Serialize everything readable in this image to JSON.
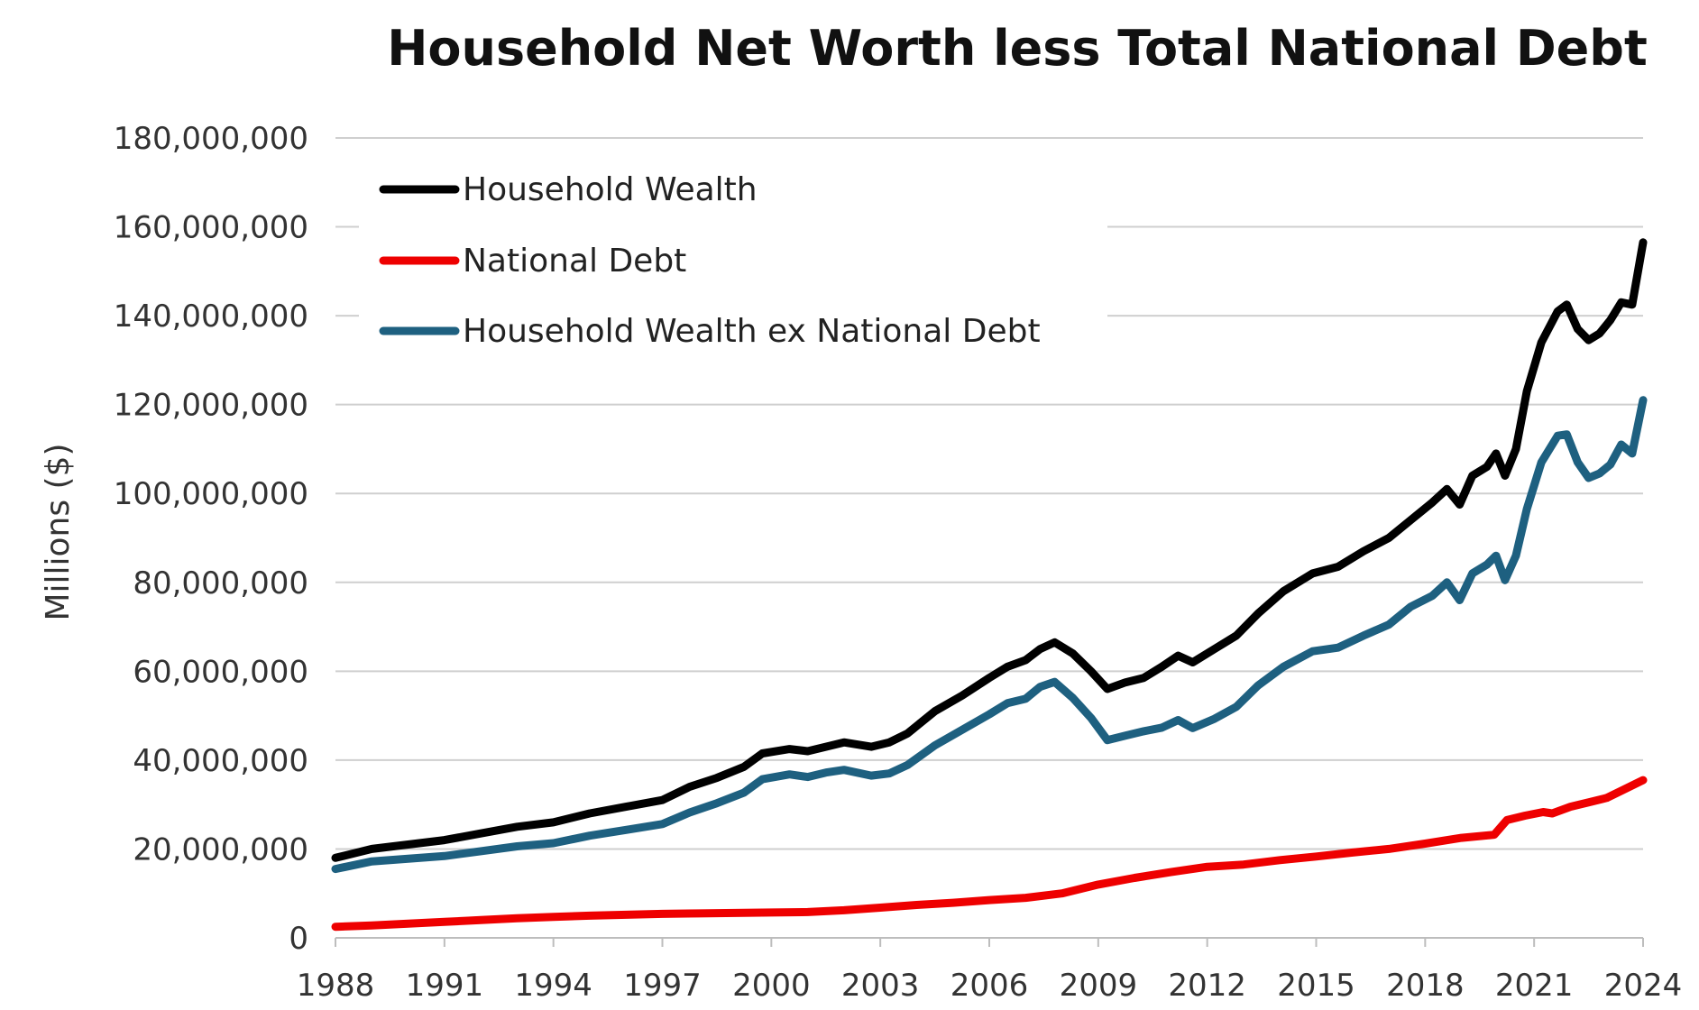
{
  "chart_data": {
    "type": "line",
    "title": "Household Net Worth less Total National Debt",
    "xlabel": "",
    "ylabel": "Millions ($)",
    "xlim": [
      1988,
      2024
    ],
    "ylim": [
      0,
      180000000
    ],
    "grid": true,
    "legend_position": "top-left",
    "x_ticks": [
      1988,
      1991,
      1994,
      1997,
      2000,
      2003,
      2006,
      2009,
      2012,
      2015,
      2018,
      2021,
      2024
    ],
    "x_tick_labels": [
      "1988",
      "1991",
      "1994",
      "1997",
      "2000",
      "2003",
      "2006",
      "2009",
      "2012",
      "2015",
      "2018",
      "2021",
      "2024"
    ],
    "y_ticks": [
      0,
      20000000,
      40000000,
      60000000,
      80000000,
      100000000,
      120000000,
      140000000,
      160000000,
      180000000
    ],
    "y_tick_labels": [
      "0",
      "20,000,000",
      "40,000,000",
      "60,000,000",
      "80,000,000",
      "100,000,000",
      "120,000,000",
      "140,000,000",
      "160,000,000",
      "180,000,000"
    ],
    "series": [
      {
        "name": "Household Wealth",
        "color": "#000000",
        "x": [
          1988,
          1989,
          1990,
          1991,
          1992,
          1993,
          1994,
          1995,
          1996,
          1997,
          1997.75,
          1998.5,
          1999.25,
          1999.75,
          2000.5,
          2001,
          2001.5,
          2002,
          2002.75,
          2003.25,
          2003.75,
          2004.5,
          2005.25,
          2006,
          2006.5,
          2007,
          2007.4,
          2007.8,
          2008.3,
          2008.8,
          2009.25,
          2009.75,
          2010.25,
          2010.75,
          2011.2,
          2011.6,
          2012.2,
          2012.8,
          2013.4,
          2014.1,
          2014.9,
          2015.6,
          2016.3,
          2017,
          2017.6,
          2018.2,
          2018.6,
          2018.95,
          2019.3,
          2019.7,
          2019.95,
          2020.2,
          2020.5,
          2020.8,
          2021.2,
          2021.65,
          2021.9,
          2022.2,
          2022.5,
          2022.8,
          2023.1,
          2023.4,
          2023.7,
          2024
        ],
        "y": [
          18000000,
          20000000,
          21000000,
          22000000,
          23500000,
          25000000,
          26000000,
          28000000,
          29500000,
          31000000,
          34000000,
          36000000,
          38500000,
          41500000,
          42500000,
          42000000,
          43000000,
          44000000,
          43000000,
          44000000,
          46000000,
          51000000,
          54500000,
          58500000,
          61000000,
          62500000,
          65000000,
          66500000,
          64000000,
          60000000,
          56000000,
          57500000,
          58500000,
          61000000,
          63500000,
          62000000,
          65000000,
          68000000,
          73000000,
          78000000,
          82000000,
          83500000,
          87000000,
          90000000,
          94000000,
          98000000,
          101000000,
          97500000,
          104000000,
          106000000,
          109000000,
          104000000,
          110000000,
          123000000,
          134000000,
          141000000,
          142500000,
          137000000,
          134500000,
          136000000,
          139000000,
          143000000,
          142500000,
          156500000
        ]
      },
      {
        "name": "National Debt",
        "color": "#ee0000",
        "x": [
          1988,
          1989,
          1990,
          1991,
          1992,
          1993,
          1994,
          1995,
          1996,
          1997,
          1998,
          1999,
          2000,
          2001,
          2002,
          2003,
          2004,
          2005,
          2006,
          2007,
          2008,
          2009,
          2010,
          2011,
          2012,
          2013,
          2014,
          2015,
          2016,
          2017,
          2018,
          2019,
          2019.9,
          2020.25,
          2020.75,
          2021.25,
          2021.5,
          2022,
          2022.5,
          2023,
          2023.5,
          2024
        ],
        "y": [
          2500000,
          2800000,
          3200000,
          3600000,
          4000000,
          4400000,
          4700000,
          5000000,
          5200000,
          5400000,
          5500000,
          5600000,
          5700000,
          5800000,
          6200000,
          6800000,
          7400000,
          7900000,
          8500000,
          9000000,
          10000000,
          12000000,
          13500000,
          14800000,
          16000000,
          16500000,
          17500000,
          18300000,
          19200000,
          20000000,
          21200000,
          22500000,
          23200000,
          26500000,
          27500000,
          28300000,
          28000000,
          29500000,
          30500000,
          31500000,
          33500000,
          35500000
        ]
      },
      {
        "name": "Household Wealth ex National Debt",
        "color": "#1e6080",
        "x": [
          1988,
          1989,
          1990,
          1991,
          1992,
          1993,
          1994,
          1995,
          1996,
          1997,
          1997.75,
          1998.5,
          1999.25,
          1999.75,
          2000.5,
          2001,
          2001.5,
          2002,
          2002.75,
          2003.25,
          2003.75,
          2004.5,
          2005.25,
          2006,
          2006.5,
          2007,
          2007.4,
          2007.8,
          2008.3,
          2008.8,
          2009.25,
          2009.75,
          2010.25,
          2010.75,
          2011.2,
          2011.6,
          2012.2,
          2012.8,
          2013.4,
          2014.1,
          2014.9,
          2015.6,
          2016.3,
          2017,
          2017.6,
          2018.2,
          2018.6,
          2018.95,
          2019.3,
          2019.7,
          2019.95,
          2020.2,
          2020.5,
          2020.8,
          2021.2,
          2021.65,
          2021.9,
          2022.2,
          2022.5,
          2022.8,
          2023.1,
          2023.4,
          2023.7,
          2024
        ],
        "y": [
          15500000,
          17200000,
          17800000,
          18400000,
          19500000,
          20600000,
          21300000,
          23000000,
          24300000,
          25600000,
          28200000,
          30300000,
          32700000,
          35700000,
          36800000,
          36200000,
          37200000,
          37800000,
          36500000,
          37000000,
          38900000,
          43300000,
          46800000,
          50300000,
          52800000,
          53800000,
          56500000,
          57600000,
          54000000,
          49500000,
          44500000,
          45500000,
          46500000,
          47300000,
          49000000,
          47200000,
          49300000,
          52000000,
          56800000,
          61000000,
          64500000,
          65300000,
          68000000,
          70500000,
          74500000,
          77000000,
          80000000,
          76000000,
          82000000,
          84000000,
          86000000,
          80500000,
          86000000,
          96500000,
          107000000,
          113000000,
          113300000,
          107000000,
          103500000,
          104500000,
          106500000,
          111000000,
          109000000,
          121000000
        ]
      }
    ]
  }
}
